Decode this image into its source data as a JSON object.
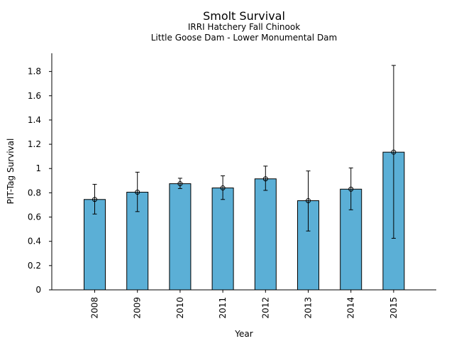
{
  "chart_data": {
    "type": "bar",
    "title": "Smolt Survival",
    "subtitle_1": "IRRI Hatchery Fall Chinook",
    "subtitle_2": "Little Goose Dam - Lower Monumental Dam",
    "xlabel": "Year",
    "ylabel": "PIT-Tag Survival",
    "categories": [
      "2008",
      "2009",
      "2010",
      "2011",
      "2012",
      "2013",
      "2014",
      "2015"
    ],
    "values": [
      0.745,
      0.805,
      0.875,
      0.84,
      0.915,
      0.735,
      0.83,
      1.135
    ],
    "error_low": [
      0.625,
      0.645,
      0.835,
      0.745,
      0.82,
      0.485,
      0.66,
      0.425
    ],
    "error_high": [
      0.87,
      0.97,
      0.92,
      0.94,
      1.02,
      0.98,
      1.005,
      1.85
    ],
    "ylim": [
      0,
      1.95
    ],
    "yticks": [
      0,
      0.2,
      0.4,
      0.6,
      0.8,
      1,
      1.2,
      1.4,
      1.6,
      1.8
    ],
    "ytick_labels": [
      "0",
      "0.2",
      "0.4",
      "0.6",
      "0.8",
      "1",
      "1.2",
      "1.4",
      "1.6",
      "1.8"
    ],
    "bar_color": "#5bafd6",
    "grid": false,
    "legend": "none"
  }
}
